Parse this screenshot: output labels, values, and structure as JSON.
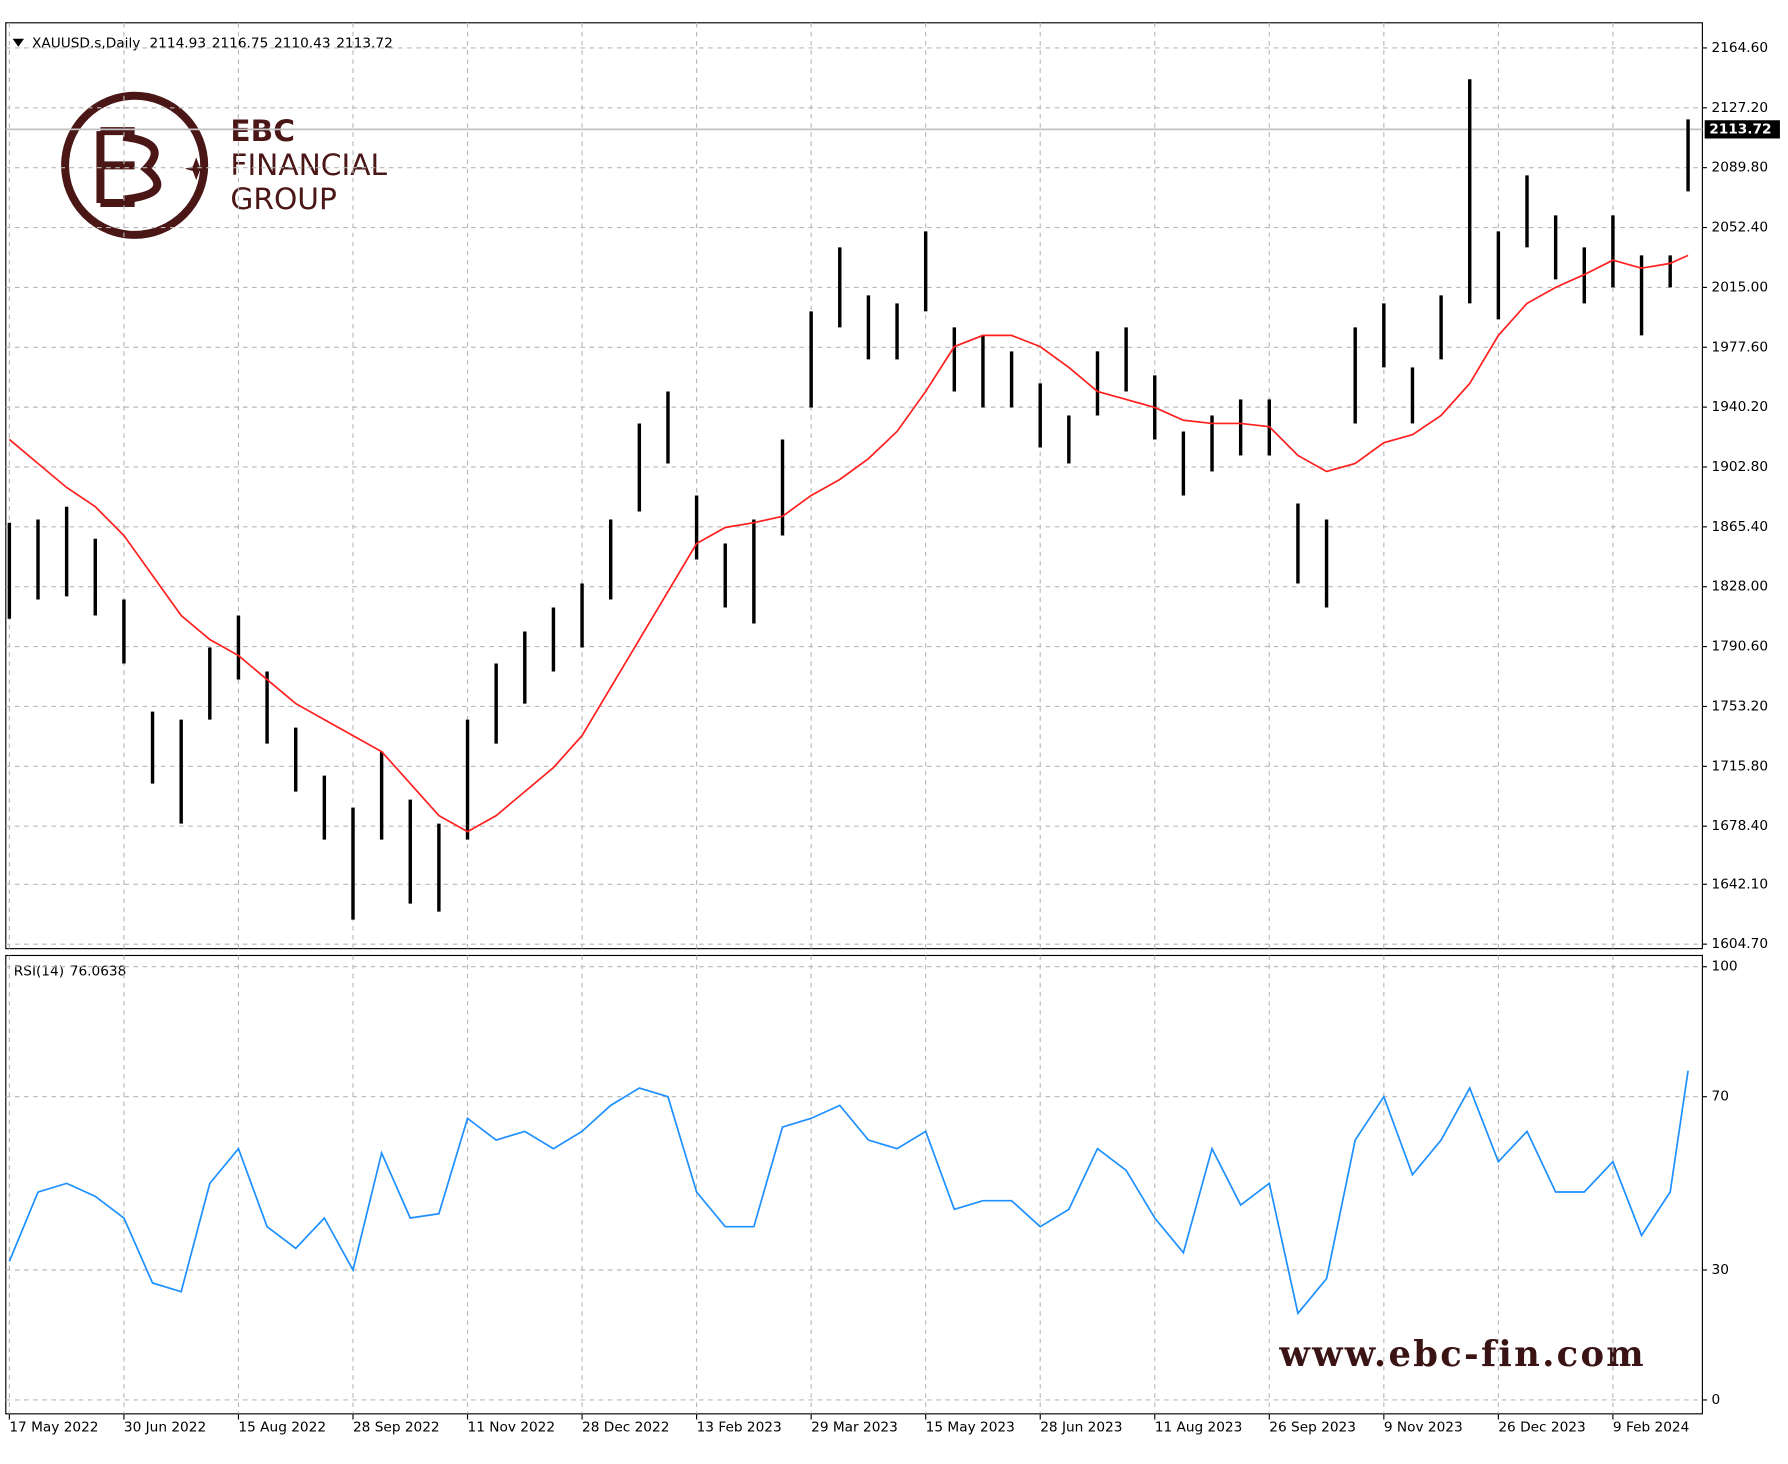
{
  "header": {
    "symbol": "XAUUSD.s,Daily",
    "ohlc": [
      2114.93,
      2116.75,
      2110.43,
      2113.72
    ]
  },
  "logo": {
    "line1": "EBC",
    "line2": "FINANCIAL",
    "line3": "GROUP"
  },
  "watermark": "www.ebc-fin.com",
  "chart_data": [
    {
      "type": "ohlc",
      "color": "#000000",
      "grid": true,
      "xlim": [
        -1,
        473
      ],
      "ylim": [
        1601.9,
        2180.3
      ],
      "last_price": {
        "value": 2113.72,
        "label": "2113.72"
      },
      "yticks": [
        {
          "value": 1604.7,
          "label": "1604.70"
        },
        {
          "value": 1642.1,
          "label": "1642.10"
        },
        {
          "value": 1678.4,
          "label": "1678.40"
        },
        {
          "value": 1715.8,
          "label": "1715.80"
        },
        {
          "value": 1753.2,
          "label": "1753.20"
        },
        {
          "value": 1790.6,
          "label": "1790.60"
        },
        {
          "value": 1828,
          "label": "1828.00"
        },
        {
          "value": 1865.4,
          "label": "1865.40"
        },
        {
          "value": 1902.8,
          "label": "1902.80"
        },
        {
          "value": 1940.2,
          "label": "1940.20"
        },
        {
          "value": 1977.6,
          "label": "1977.60"
        },
        {
          "value": 2015,
          "label": "2015.00"
        },
        {
          "value": 2052.4,
          "label": "2052.40"
        },
        {
          "value": 2089.8,
          "label": "2089.80"
        },
        {
          "value": 2127.2,
          "label": "2127.20"
        },
        {
          "value": 2164.6,
          "label": "2164.60"
        }
      ],
      "x": [
        0,
        8,
        16,
        24,
        32,
        40,
        48,
        56,
        64,
        72,
        80,
        88,
        96,
        104,
        112,
        120,
        128,
        136,
        144,
        152,
        160,
        168,
        176,
        184,
        192,
        200,
        208,
        216,
        224,
        232,
        240,
        248,
        256,
        264,
        272,
        280,
        288,
        296,
        304,
        312,
        320,
        328,
        336,
        344,
        352,
        360,
        368,
        376,
        384,
        392,
        400,
        408,
        416,
        424,
        432,
        440,
        448,
        456,
        464,
        469
      ],
      "high": [
        1868,
        1870,
        1878,
        1858,
        1820,
        1750,
        1745,
        1790,
        1810,
        1775,
        1740,
        1710,
        1690,
        1725,
        1695,
        1680,
        1745,
        1780,
        1800,
        1815,
        1830,
        1870,
        1930,
        1950,
        1885,
        1855,
        1870,
        1920,
        2000,
        2040,
        2010,
        2005,
        2050,
        1990,
        1985,
        1975,
        1955,
        1935,
        1975,
        1990,
        1960,
        1925,
        1935,
        1945,
        1945,
        1880,
        1870,
        1990,
        2005,
        1965,
        2010,
        2145,
        2050,
        2085,
        2060,
        2040,
        2060,
        2035,
        2035,
        2120
      ],
      "low": [
        1808,
        1820,
        1822,
        1810,
        1780,
        1705,
        1680,
        1745,
        1770,
        1730,
        1700,
        1670,
        1620,
        1670,
        1630,
        1625,
        1670,
        1730,
        1755,
        1775,
        1790,
        1820,
        1875,
        1905,
        1845,
        1815,
        1805,
        1860,
        1940,
        1990,
        1970,
        1970,
        2000,
        1950,
        1940,
        1940,
        1915,
        1905,
        1935,
        1950,
        1920,
        1885,
        1900,
        1910,
        1910,
        1830,
        1815,
        1930,
        1965,
        1930,
        1970,
        2005,
        1995,
        2040,
        2020,
        2005,
        2015,
        1985,
        2015,
        2075
      ],
      "ma": {
        "color": "#ff2020",
        "values": [
          1920,
          1905,
          1890,
          1878,
          1860,
          1835,
          1810,
          1795,
          1785,
          1770,
          1755,
          1745,
          1735,
          1725,
          1705,
          1685,
          1675,
          1685,
          1700,
          1715,
          1735,
          1765,
          1795,
          1825,
          1855,
          1865,
          1868,
          1872,
          1885,
          1895,
          1908,
          1925,
          1950,
          1978,
          1985,
          1985,
          1978,
          1965,
          1950,
          1945,
          1940,
          1932,
          1930,
          1930,
          1928,
          1910,
          1900,
          1905,
          1918,
          1923,
          1935,
          1955,
          1985,
          2005,
          2015,
          2023,
          2032,
          2027,
          2030,
          2035
        ]
      }
    },
    {
      "type": "line",
      "title": "RSI(14)",
      "current": 76.0638,
      "color": "#1e90ff",
      "grid": true,
      "xlim": [
        -1,
        473
      ],
      "ylim": [
        -3.2,
        102.6
      ],
      "yticks": [
        0,
        30,
        70,
        100
      ],
      "xticks": [
        {
          "value": 0,
          "label": "17 May 2022"
        },
        {
          "value": 32,
          "label": "30 Jun 2022"
        },
        {
          "value": 64,
          "label": "15 Aug 2022"
        },
        {
          "value": 96,
          "label": "28 Sep 2022"
        },
        {
          "value": 128,
          "label": "11 Nov 2022"
        },
        {
          "value": 160,
          "label": "28 Dec 2022"
        },
        {
          "value": 192,
          "label": "13 Feb 2023"
        },
        {
          "value": 224,
          "label": "29 Mar 2023"
        },
        {
          "value": 256,
          "label": "15 May 2023"
        },
        {
          "value": 288,
          "label": "28 Jun 2023"
        },
        {
          "value": 320,
          "label": "11 Aug 2023"
        },
        {
          "value": 352,
          "label": "26 Sep 2023"
        },
        {
          "value": 384,
          "label": "9 Nov 2023"
        },
        {
          "value": 416,
          "label": "26 Dec 2023"
        },
        {
          "value": 448,
          "label": "9 Feb 2024"
        }
      ],
      "x": [
        0,
        8,
        16,
        24,
        32,
        40,
        48,
        56,
        64,
        72,
        80,
        88,
        96,
        104,
        112,
        120,
        128,
        136,
        144,
        152,
        160,
        168,
        176,
        184,
        192,
        200,
        208,
        216,
        224,
        232,
        240,
        248,
        256,
        264,
        272,
        280,
        288,
        296,
        304,
        312,
        320,
        328,
        336,
        344,
        352,
        360,
        368,
        376,
        384,
        392,
        400,
        408,
        416,
        424,
        432,
        440,
        448,
        456,
        464,
        469
      ],
      "values": [
        32,
        48,
        50,
        47,
        42,
        27,
        25,
        50,
        58,
        40,
        35,
        42,
        30,
        57,
        42,
        43,
        65,
        60,
        62,
        58,
        62,
        68,
        72,
        70,
        48,
        40,
        40,
        63,
        65,
        68,
        60,
        58,
        62,
        44,
        46,
        46,
        40,
        44,
        58,
        53,
        42,
        34,
        58,
        45,
        50,
        20,
        28,
        60,
        70,
        52,
        60,
        72,
        55,
        62,
        48,
        48,
        55,
        38,
        48,
        76
      ]
    }
  ]
}
